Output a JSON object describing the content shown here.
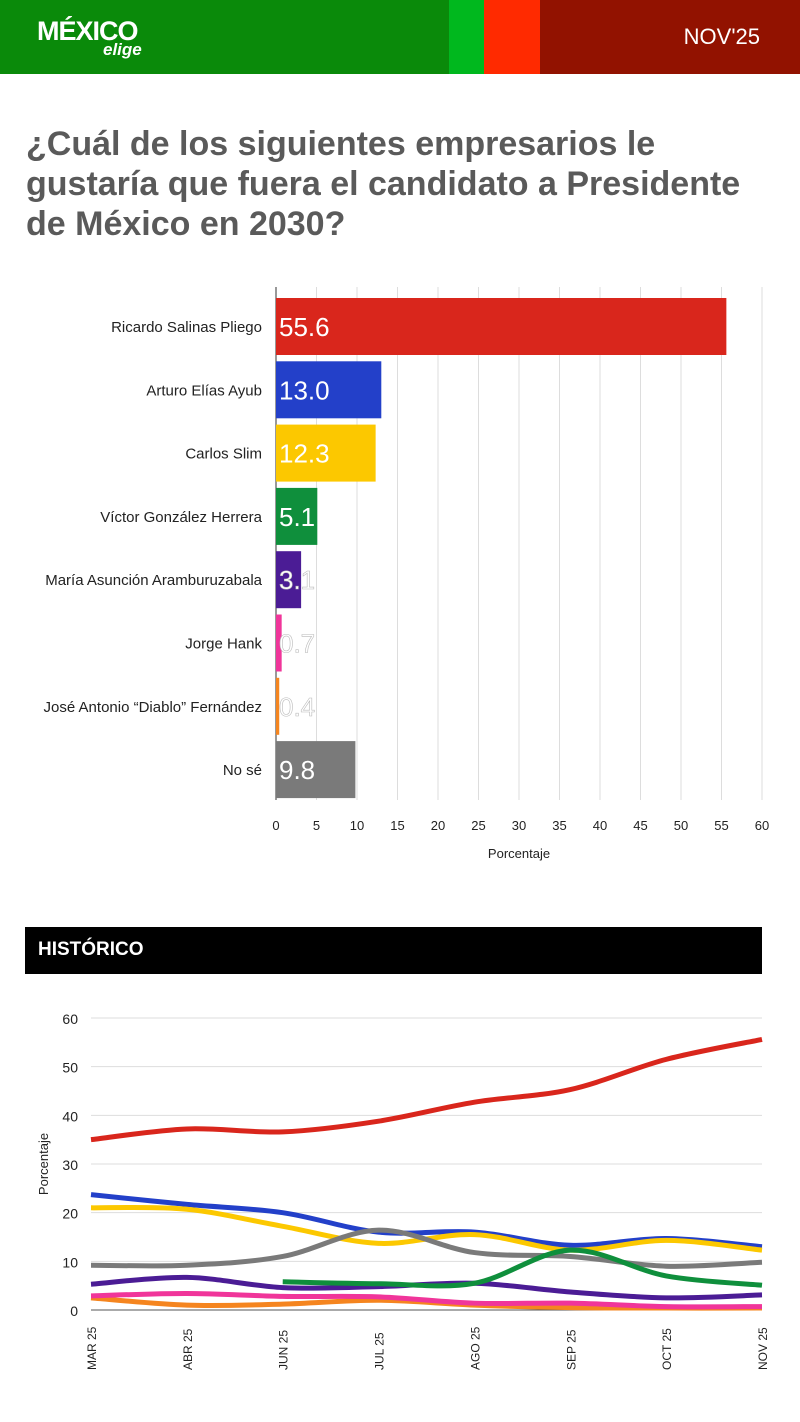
{
  "header": {
    "logo_main": "MÉXICO",
    "logo_sub": "elige",
    "date": "NOV'25",
    "colors": [
      "#0a8a0a",
      "#00b81e",
      "#ff2a00",
      "#921200"
    ]
  },
  "question": "¿Cuál de los siguientes empresarios le gustaría que fuera el candidato a Presidente de México en 2030?",
  "historico_label": "HISTÓRICO",
  "chart_data": [
    {
      "type": "bar",
      "orientation": "horizontal",
      "categories": [
        "Ricardo Salinas Pliego",
        "Arturo Elías Ayub",
        "Carlos Slim",
        "Víctor González Herrera",
        "María Asunción Aramburuzabala",
        "Jorge Hank",
        "José Antonio “Diablo” Fernández",
        "No sé"
      ],
      "values": [
        55.6,
        13.0,
        12.3,
        5.1,
        3.1,
        0.7,
        0.4,
        9.8
      ],
      "value_labels": [
        "55.6",
        "13.0",
        "12.3",
        "5.1",
        "3.1",
        "0.7",
        "0.4",
        "9.8"
      ],
      "colors": [
        "#d9261c",
        "#2340c9",
        "#fcc800",
        "#0f8f3c",
        "#4b1c95",
        "#f0359a",
        "#f5851f",
        "#7a7a7a"
      ],
      "xlabel": "Porcentaje",
      "xlim": [
        0,
        60
      ],
      "xticks": [
        "0",
        "5",
        "10",
        "15",
        "20",
        "25",
        "30",
        "35",
        "40",
        "45",
        "50",
        "55",
        "60"
      ],
      "grid": true
    },
    {
      "type": "line",
      "x": [
        "MAR 25",
        "ABR 25",
        "JUN 25",
        "JUL 25",
        "AGO 25",
        "SEP 25",
        "OCT 25",
        "NOV 25"
      ],
      "ylabel": "Porcentaje",
      "ylim": [
        0,
        60
      ],
      "yticks": [
        "0",
        "10",
        "20",
        "30",
        "40",
        "50",
        "60"
      ],
      "grid": true,
      "series": [
        {
          "color": "#d9261c",
          "values": [
            35.0,
            37.2,
            36.6,
            38.8,
            42.7,
            45.3,
            51.5,
            55.6
          ]
        },
        {
          "color": "#2340c9",
          "values": [
            23.7,
            21.7,
            20.0,
            16.0,
            16.0,
            13.3,
            14.7,
            13.0
          ]
        },
        {
          "color": "#fcc800",
          "values": [
            21.0,
            20.7,
            17.2,
            13.7,
            15.5,
            12.3,
            14.3,
            12.3
          ]
        },
        {
          "color": "#7a7a7a",
          "values": [
            9.2,
            9.2,
            11.0,
            16.4,
            11.8,
            11.0,
            9.0,
            9.8
          ]
        },
        {
          "color": "#4b1c95",
          "values": [
            5.3,
            6.7,
            4.6,
            4.8,
            5.5,
            3.7,
            2.5,
            3.1
          ]
        },
        {
          "color": "#0f8f3c",
          "values": [
            null,
            null,
            5.8,
            5.4,
            5.5,
            12.3,
            7.0,
            5.1
          ]
        },
        {
          "color": "#f5851f",
          "values": [
            2.5,
            1.0,
            1.2,
            2.0,
            1.0,
            0.5,
            0.4,
            0.4
          ]
        },
        {
          "color": "#f0359a",
          "values": [
            2.9,
            3.4,
            2.8,
            2.7,
            1.4,
            1.4,
            0.7,
            0.7
          ]
        }
      ]
    }
  ]
}
